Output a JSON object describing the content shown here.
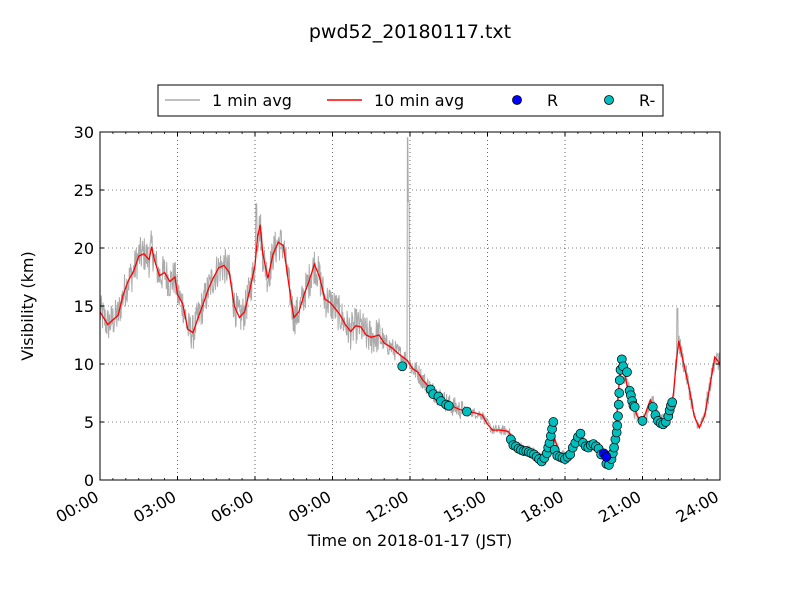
{
  "chart_data": {
    "type": "line",
    "title": "pwd52_20180117.txt",
    "xlabel": "Time on 2018-01-17 (JST)",
    "ylabel": "Visibility (km)",
    "xlim": [
      0,
      24
    ],
    "ylim": [
      0,
      30
    ],
    "x_ticks": [
      0,
      3,
      6,
      9,
      12,
      15,
      18,
      21,
      24
    ],
    "x_tick_labels": [
      "00:00",
      "03:00",
      "06:00",
      "09:00",
      "12:00",
      "15:00",
      "18:00",
      "21:00",
      "24:00"
    ],
    "y_ticks": [
      0,
      5,
      10,
      15,
      20,
      25,
      30
    ],
    "y_tick_labels": [
      "0",
      "5",
      "10",
      "15",
      "20",
      "25",
      "30"
    ],
    "grid": true,
    "legend_position": "top-center",
    "legend": [
      {
        "label": "1 min avg",
        "kind": "line",
        "color": "#aaaaaa"
      },
      {
        "label": "10 min avg",
        "kind": "line",
        "color": "#ff0000"
      },
      {
        "label": "R",
        "kind": "marker",
        "color": "#0000ff"
      },
      {
        "label": "R-",
        "kind": "marker",
        "color": "#00bfbf"
      }
    ],
    "series": [
      {
        "name": "10 min avg",
        "color": "#ff0000",
        "points": [
          [
            0,
            14.5
          ],
          [
            0.3,
            13.4
          ],
          [
            0.5,
            13.8
          ],
          [
            0.7,
            14.2
          ],
          [
            0.9,
            16.0
          ],
          [
            1.1,
            17.2
          ],
          [
            1.3,
            18.0
          ],
          [
            1.5,
            19.3
          ],
          [
            1.7,
            19.5
          ],
          [
            1.9,
            19.0
          ],
          [
            2.0,
            20.1
          ],
          [
            2.1,
            19.0
          ],
          [
            2.3,
            17.6
          ],
          [
            2.5,
            17.9
          ],
          [
            2.7,
            17.1
          ],
          [
            2.9,
            17.5
          ],
          [
            3.0,
            16.0
          ],
          [
            3.2,
            15.2
          ],
          [
            3.4,
            13.0
          ],
          [
            3.6,
            12.7
          ],
          [
            3.8,
            14.0
          ],
          [
            4.0,
            15.2
          ],
          [
            4.2,
            16.5
          ],
          [
            4.4,
            17.5
          ],
          [
            4.6,
            18.3
          ],
          [
            4.8,
            18.5
          ],
          [
            5.0,
            17.9
          ],
          [
            5.2,
            15.0
          ],
          [
            5.4,
            14.0
          ],
          [
            5.6,
            14.5
          ],
          [
            5.8,
            16.4
          ],
          [
            6.0,
            18.5
          ],
          [
            6.1,
            21.0
          ],
          [
            6.2,
            22.0
          ],
          [
            6.3,
            19.5
          ],
          [
            6.5,
            17.4
          ],
          [
            6.7,
            19.5
          ],
          [
            6.9,
            20.5
          ],
          [
            7.1,
            20.2
          ],
          [
            7.3,
            17.0
          ],
          [
            7.5,
            14.0
          ],
          [
            7.7,
            14.5
          ],
          [
            7.9,
            16.0
          ],
          [
            8.1,
            17.2
          ],
          [
            8.3,
            18.6
          ],
          [
            8.5,
            17.5
          ],
          [
            8.7,
            15.6
          ],
          [
            8.9,
            15.3
          ],
          [
            9.1,
            14.8
          ],
          [
            9.3,
            14.2
          ],
          [
            9.5,
            13.4
          ],
          [
            9.7,
            12.8
          ],
          [
            9.9,
            13.3
          ],
          [
            10.1,
            13.2
          ],
          [
            10.3,
            12.5
          ],
          [
            10.5,
            12.3
          ],
          [
            10.8,
            12.5
          ],
          [
            11.0,
            11.8
          ],
          [
            11.3,
            11.4
          ],
          [
            11.6,
            10.8
          ],
          [
            11.9,
            10.3
          ],
          [
            12.1,
            9.6
          ],
          [
            12.3,
            9.3
          ],
          [
            12.5,
            8.6
          ],
          [
            12.7,
            8.1
          ],
          [
            12.9,
            7.6
          ],
          [
            13.1,
            7.3
          ],
          [
            13.3,
            6.9
          ],
          [
            13.6,
            6.4
          ],
          [
            13.9,
            6.1
          ],
          [
            14.2,
            5.9
          ],
          [
            14.5,
            5.8
          ],
          [
            14.8,
            5.6
          ],
          [
            15.0,
            4.8
          ],
          [
            15.2,
            4.3
          ],
          [
            15.5,
            4.3
          ],
          [
            15.8,
            4.2
          ],
          [
            16.1,
            3.2
          ],
          [
            16.3,
            2.8
          ],
          [
            16.5,
            2.6
          ],
          [
            16.8,
            2.5
          ],
          [
            17.0,
            2.0
          ],
          [
            17.2,
            1.9
          ],
          [
            17.4,
            2.5
          ],
          [
            17.6,
            3.5
          ],
          [
            17.8,
            2.3
          ],
          [
            18.0,
            2.0
          ],
          [
            18.2,
            2.4
          ],
          [
            18.4,
            3.3
          ],
          [
            18.6,
            3.8
          ],
          [
            18.8,
            3.0
          ],
          [
            19.0,
            2.8
          ],
          [
            19.2,
            3.0
          ],
          [
            19.4,
            2.8
          ],
          [
            19.6,
            1.5
          ],
          [
            19.7,
            1.6
          ],
          [
            19.8,
            2.1
          ],
          [
            19.9,
            3.3
          ],
          [
            20.0,
            5.5
          ],
          [
            20.1,
            8.5
          ],
          [
            20.2,
            10.0
          ],
          [
            20.3,
            9.3
          ],
          [
            20.4,
            8.2
          ],
          [
            20.6,
            6.8
          ],
          [
            20.8,
            5.5
          ],
          [
            21.0,
            5.0
          ],
          [
            21.2,
            6.3
          ],
          [
            21.3,
            6.9
          ],
          [
            21.5,
            6.0
          ],
          [
            21.7,
            5.2
          ],
          [
            21.9,
            5.2
          ],
          [
            22.1,
            6.0
          ],
          [
            22.2,
            7.5
          ],
          [
            22.3,
            10.0
          ],
          [
            22.4,
            12.0
          ],
          [
            22.6,
            10.0
          ],
          [
            22.8,
            8.0
          ],
          [
            23.0,
            5.5
          ],
          [
            23.2,
            4.5
          ],
          [
            23.4,
            5.5
          ],
          [
            23.6,
            8.0
          ],
          [
            23.8,
            10.6
          ],
          [
            24.0,
            10.0
          ]
        ]
      },
      {
        "name": "R-",
        "color": "#00bfbf",
        "points": [
          [
            11.7,
            9.8
          ],
          [
            12.8,
            7.8
          ],
          [
            12.9,
            7.4
          ],
          [
            13.1,
            7.2
          ],
          [
            13.2,
            6.8
          ],
          [
            13.4,
            6.5
          ],
          [
            13.5,
            6.4
          ],
          [
            14.2,
            5.9
          ],
          [
            15.9,
            3.5
          ],
          [
            16.0,
            3.0
          ],
          [
            16.1,
            2.9
          ],
          [
            16.2,
            2.7
          ],
          [
            16.3,
            2.6
          ],
          [
            16.4,
            2.5
          ],
          [
            16.5,
            2.5
          ],
          [
            16.6,
            2.4
          ],
          [
            16.7,
            2.3
          ],
          [
            16.8,
            2.2
          ],
          [
            16.9,
            2.0
          ],
          [
            17.0,
            1.8
          ],
          [
            17.1,
            1.6
          ],
          [
            17.2,
            1.9
          ],
          [
            17.3,
            2.3
          ],
          [
            17.35,
            2.8
          ],
          [
            17.4,
            3.2
          ],
          [
            17.45,
            3.8
          ],
          [
            17.5,
            4.4
          ],
          [
            17.55,
            5.0
          ],
          [
            17.6,
            2.6
          ],
          [
            17.7,
            2.1
          ],
          [
            17.8,
            2.0
          ],
          [
            17.9,
            1.9
          ],
          [
            18.0,
            1.8
          ],
          [
            18.1,
            2.0
          ],
          [
            18.2,
            2.2
          ],
          [
            18.3,
            2.8
          ],
          [
            18.4,
            3.2
          ],
          [
            18.5,
            3.7
          ],
          [
            18.6,
            4.0
          ],
          [
            18.7,
            3.2
          ],
          [
            18.8,
            2.9
          ],
          [
            18.9,
            2.8
          ],
          [
            19.0,
            3.0
          ],
          [
            19.1,
            3.1
          ],
          [
            19.2,
            2.9
          ],
          [
            19.3,
            2.7
          ],
          [
            19.4,
            2.2
          ],
          [
            19.6,
            1.4
          ],
          [
            19.7,
            1.3
          ],
          [
            19.8,
            1.8
          ],
          [
            19.85,
            2.3
          ],
          [
            19.9,
            2.8
          ],
          [
            19.95,
            3.5
          ],
          [
            20.0,
            4.1
          ],
          [
            20.02,
            4.7
          ],
          [
            20.05,
            5.5
          ],
          [
            20.08,
            6.5
          ],
          [
            20.1,
            7.5
          ],
          [
            20.12,
            8.6
          ],
          [
            20.15,
            9.5
          ],
          [
            20.2,
            10.4
          ],
          [
            20.25,
            9.8
          ],
          [
            20.4,
            9.3
          ],
          [
            20.5,
            7.7
          ],
          [
            20.55,
            7.3
          ],
          [
            20.6,
            6.8
          ],
          [
            20.65,
            6.4
          ],
          [
            20.7,
            6.3
          ],
          [
            21.0,
            5.1
          ],
          [
            21.4,
            6.3
          ],
          [
            21.5,
            5.6
          ],
          [
            21.6,
            5.1
          ],
          [
            21.7,
            4.9
          ],
          [
            21.8,
            4.8
          ],
          [
            21.9,
            5.0
          ],
          [
            22.0,
            5.5
          ],
          [
            22.05,
            6.0
          ],
          [
            22.1,
            6.4
          ],
          [
            22.15,
            6.7
          ]
        ]
      },
      {
        "name": "R",
        "color": "#0000ff",
        "points": [
          [
            19.5,
            2.3
          ],
          [
            19.6,
            2.0
          ]
        ]
      }
    ]
  }
}
